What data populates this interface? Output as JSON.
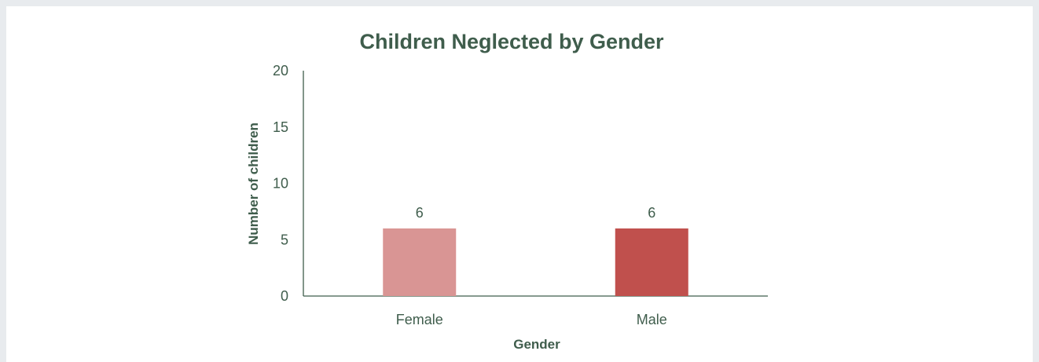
{
  "chart_data": {
    "type": "bar",
    "title": "Children Neglected by Gender",
    "xlabel": "Gender",
    "ylabel": "Number of children",
    "categories": [
      "Female",
      "Male"
    ],
    "values": [
      6,
      6
    ],
    "data_labels": [
      "6",
      "6"
    ],
    "ylim": [
      0,
      20
    ],
    "yticks": [
      0,
      5,
      10,
      15,
      20
    ],
    "ytick_labels": [
      "0",
      "5",
      "10",
      "15",
      "20"
    ],
    "bar_colors": [
      "#d99594",
      "#c0504d"
    ],
    "grid": false,
    "legend": "none"
  }
}
